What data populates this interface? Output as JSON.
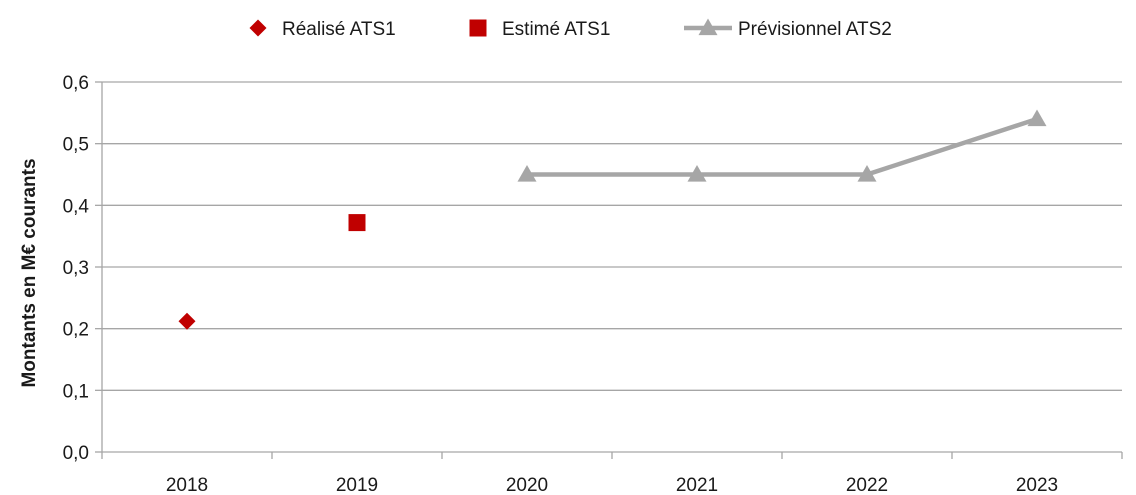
{
  "chart_data": {
    "type": "line",
    "title": "",
    "xlabel": "",
    "ylabel": "Montants en M€ courants",
    "categories": [
      "2018",
      "2019",
      "2020",
      "2021",
      "2022",
      "2023"
    ],
    "ylim": [
      0,
      0.6
    ],
    "yticks": [
      "0,0",
      "0,1",
      "0,2",
      "0,3",
      "0,4",
      "0,5",
      "0,6"
    ],
    "grid": true,
    "legend_position": "top",
    "series": [
      {
        "name": "Réalisé ATS1",
        "marker": "diamond",
        "line": false,
        "color": "#C00000",
        "values": [
          0.212,
          null,
          null,
          null,
          null,
          null
        ]
      },
      {
        "name": "Estimé ATS1",
        "marker": "square",
        "line": false,
        "color": "#C00000",
        "values": [
          null,
          0.372,
          null,
          null,
          null,
          null
        ]
      },
      {
        "name": "Prévisionnel ATS2",
        "marker": "triangle",
        "line": true,
        "color": "#A6A6A6",
        "values": [
          null,
          null,
          0.45,
          0.45,
          0.45,
          0.54
        ]
      }
    ]
  }
}
